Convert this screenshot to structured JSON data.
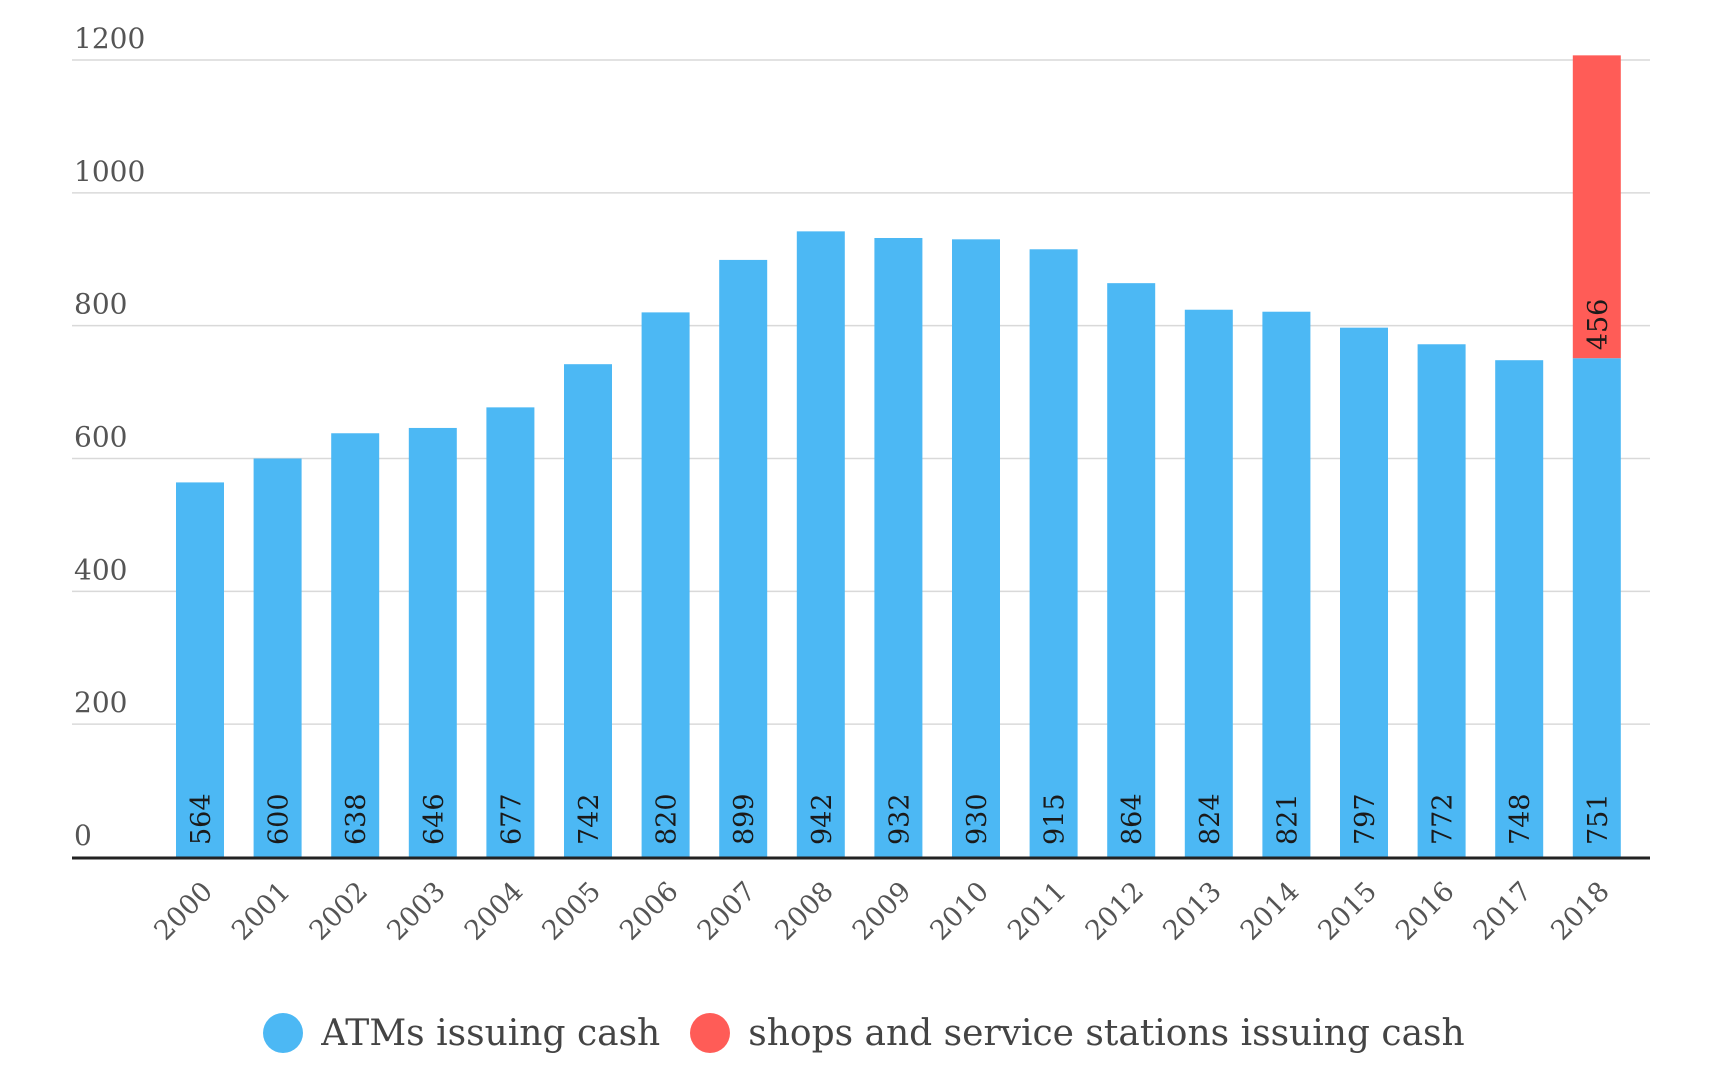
{
  "chart_data": {
    "type": "bar",
    "stacked": true,
    "categories": [
      "2000",
      "2001",
      "2002",
      "2003",
      "2004",
      "2005",
      "2006",
      "2007",
      "2008",
      "2009",
      "2010",
      "2011",
      "2012",
      "2013",
      "2014",
      "2015",
      "2016",
      "2017",
      "2018"
    ],
    "series": [
      {
        "name": "ATMs issuing cash",
        "color": "#4cb8f4",
        "values": [
          564,
          600,
          638,
          646,
          677,
          742,
          820,
          899,
          942,
          932,
          930,
          915,
          864,
          824,
          821,
          797,
          772,
          748,
          751
        ]
      },
      {
        "name": "shops and service stations issuing cash",
        "color": "#ff5c57",
        "values": [
          0,
          0,
          0,
          0,
          0,
          0,
          0,
          0,
          0,
          0,
          0,
          0,
          0,
          0,
          0,
          0,
          0,
          0,
          456
        ]
      }
    ],
    "yticks": [
      "0",
      "200",
      "400",
      "600",
      "800",
      "1000",
      "1200"
    ],
    "ylim": [
      0,
      1200
    ],
    "grid": true,
    "legend_position": "bottom"
  }
}
